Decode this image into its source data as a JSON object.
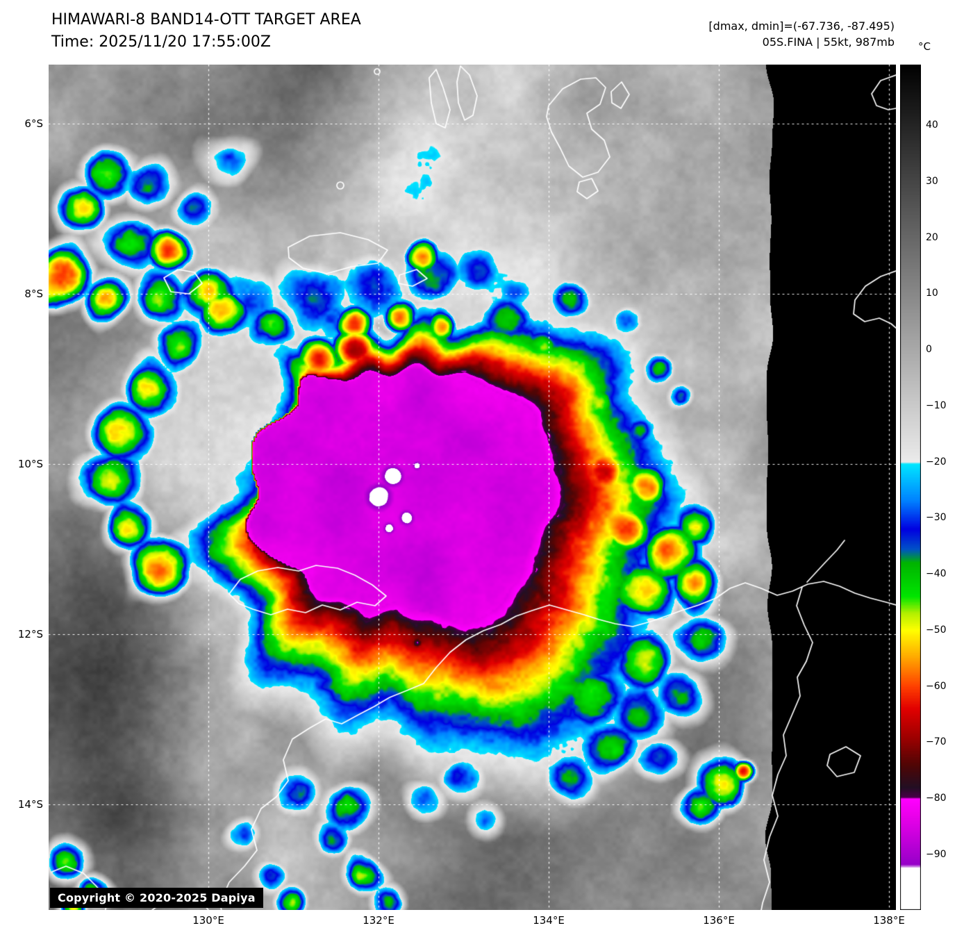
{
  "header": {
    "title": "HIMAWARI-8 BAND14-OTT TARGET AREA",
    "time": "Time: 2025/11/20 17:55:00Z",
    "range_info": "[dmax, dmin]=(-67.736, -87.495)",
    "storm_info": "05S.FINA | 55kt, 987mb"
  },
  "colorbar": {
    "unit_label": "°C",
    "ticks": [
      "40",
      "30",
      "20",
      "10",
      "0",
      "−10",
      "−20",
      "−30",
      "−40",
      "−50",
      "−60",
      "−70",
      "−80",
      "−90"
    ],
    "palette": [
      [
        51,
        "#000000"
      ],
      [
        -20,
        "#ebebeb"
      ],
      [
        -20.4,
        "#00e6ff"
      ],
      [
        -27,
        "#0080ff"
      ],
      [
        -32,
        "#0000e1"
      ],
      [
        -35.5,
        "#0050c8"
      ],
      [
        -38,
        "#00b400"
      ],
      [
        -44,
        "#00e600"
      ],
      [
        -47,
        "#b4f000"
      ],
      [
        -50,
        "#ffff00"
      ],
      [
        -55,
        "#ffa500"
      ],
      [
        -60,
        "#ff4000"
      ],
      [
        -64,
        "#e10000"
      ],
      [
        -69,
        "#a00000"
      ],
      [
        -74,
        "#500505"
      ],
      [
        -78,
        "#230f23"
      ],
      [
        -79.7,
        "#460046"
      ],
      [
        -80.1,
        "#ff00ff"
      ],
      [
        -83,
        "#eb00eb"
      ],
      [
        -88,
        "#bc00d7"
      ],
      [
        -91.8,
        "#9600c8"
      ],
      [
        -92.4,
        "#ffffff"
      ],
      [
        -101,
        "#ffffff"
      ]
    ]
  },
  "map": {
    "lat_ticks": [
      "6°S",
      "8°S",
      "10°S",
      "12°S",
      "14°S"
    ],
    "lon_ticks": [
      "130°E",
      "132°E",
      "134°E",
      "136°E",
      "138°E"
    ],
    "copyright": "Copyright © 2020-2025 Dapiya"
  }
}
